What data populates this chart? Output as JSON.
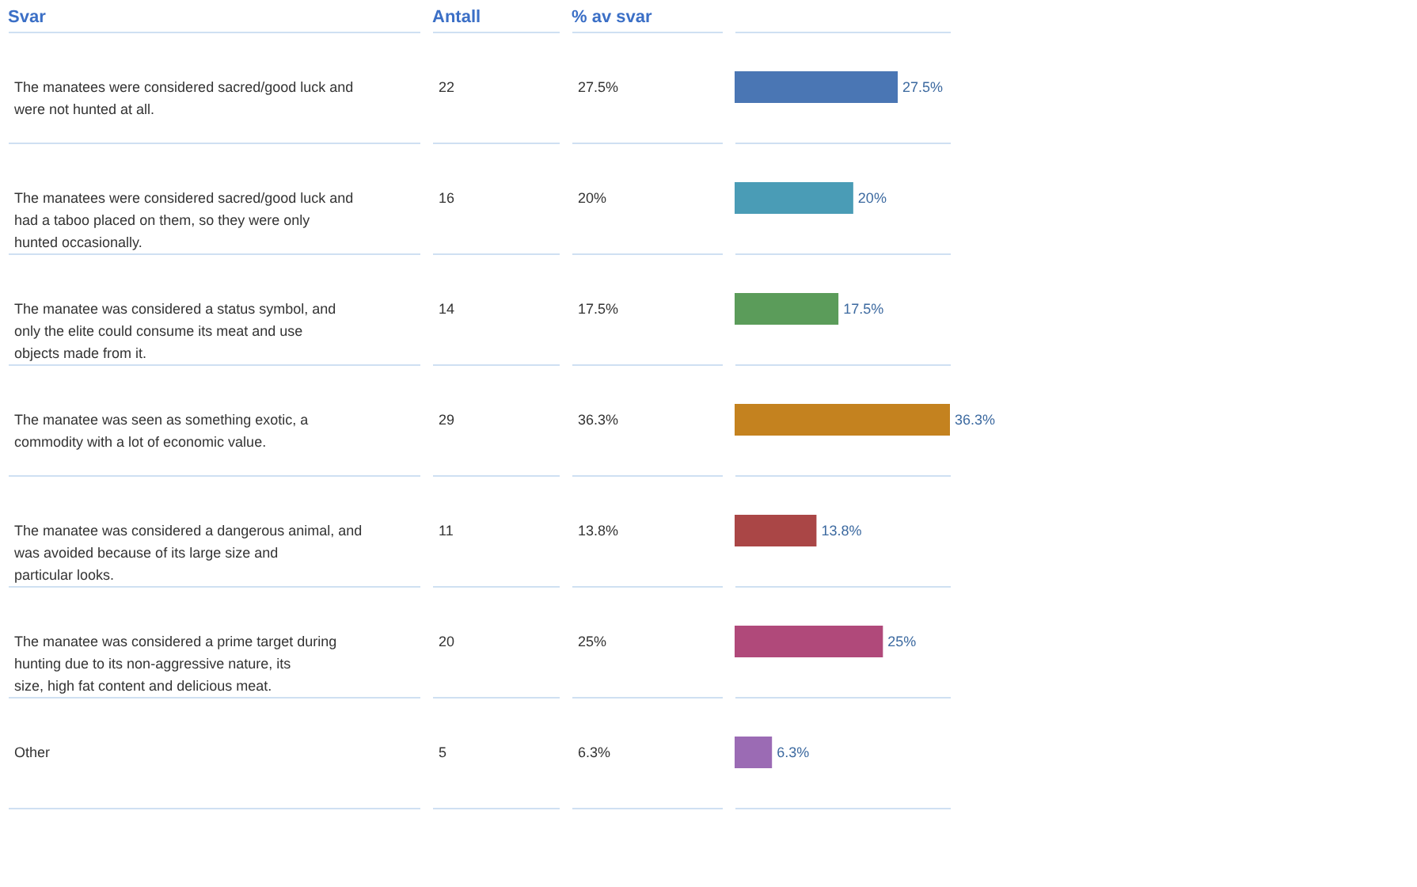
{
  "chart_data": {
    "type": "bar",
    "orientation": "horizontal",
    "ylabel": "Svar",
    "categories": [
      "The manatees were considered sacred/good luck and were not hunted at all.",
      "The manatees were considered sacred/good luck and had a taboo placed on them, so they were only hunted occasionally.",
      "The manatee was considered a status symbol, and only the elite could consume its meat and use objects made from it.",
      "The manatee was seen as something exotic, a commodity with a lot of economic value.",
      "The manatee was considered a dangerous animal, and was avoided because of its large size and particular looks.",
      "The manatee was considered a prime target during hunting due to its non-aggressive nature, its size, high fat content and delicious meat.",
      "Other"
    ],
    "values": [
      27.5,
      20,
      17.5,
      36.3,
      13.8,
      25,
      6.3
    ],
    "value_labels": [
      "27.5%",
      "20%",
      "17.5%",
      "36.3%",
      "13.8%",
      "25%",
      "6.3%"
    ],
    "colors": [
      "#4a76b4",
      "#4a9cb6",
      "#5b9c5a",
      "#c4821f",
      "#aa4646",
      "#b0497a",
      "#9b6bb4"
    ],
    "grid": "y",
    "annotations": [
      "Antall",
      "% av svar",
      "22",
      "16",
      "14",
      "29",
      "11",
      "20",
      "5"
    ]
  }
}
